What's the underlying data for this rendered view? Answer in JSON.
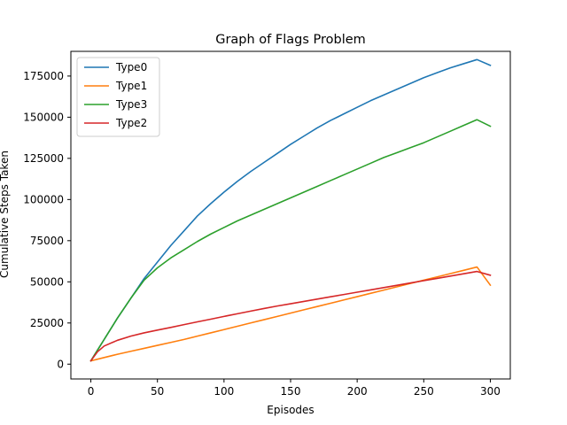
{
  "chart_data": {
    "type": "line",
    "title": "Graph of Flags Problem",
    "xlabel": "Episodes",
    "ylabel": "Cumulative Steps Taken",
    "xlim": [
      -15,
      315
    ],
    "ylim": [
      -9000,
      190000
    ],
    "xticks": [
      0,
      50,
      100,
      150,
      200,
      250,
      300
    ],
    "xtick_labels": [
      "0",
      "50",
      "100",
      "150",
      "200",
      "250",
      "300"
    ],
    "yticks": [
      0,
      25000,
      50000,
      75000,
      100000,
      125000,
      150000,
      175000
    ],
    "ytick_labels": [
      "0",
      "25000",
      "50000",
      "75000",
      "100000",
      "125000",
      "150000",
      "175000"
    ],
    "grid": false,
    "legend_position": "top-left",
    "x": [
      0,
      5,
      10,
      20,
      30,
      40,
      50,
      60,
      70,
      80,
      90,
      100,
      110,
      120,
      130,
      140,
      150,
      160,
      170,
      180,
      190,
      200,
      210,
      220,
      230,
      240,
      250,
      260,
      270,
      280,
      290,
      300
    ],
    "series": [
      {
        "name": "Type0",
        "color": "#1f77b4",
        "values": [
          2000,
          8500,
          15000,
          28000,
          40000,
          52000,
          62000,
          72000,
          81000,
          90000,
          97500,
          104500,
          111000,
          117000,
          122500,
          128000,
          133500,
          138500,
          143500,
          148000,
          152000,
          156000,
          160000,
          163500,
          167000,
          170500,
          174000,
          177000,
          180000,
          182500,
          185000,
          181500
        ]
      },
      {
        "name": "Type1",
        "color": "#ff7f0e",
        "values": [
          2000,
          3000,
          4000,
          6000,
          7800,
          9600,
          11400,
          13200,
          15000,
          17000,
          19000,
          21000,
          23000,
          25000,
          27000,
          29000,
          31000,
          33000,
          35000,
          37000,
          39000,
          41000,
          43000,
          45000,
          47000,
          49000,
          51000,
          53000,
          55000,
          57000,
          59000,
          48000
        ]
      },
      {
        "name": "Type3",
        "color": "#2ca02c",
        "values": [
          2000,
          8500,
          15000,
          28000,
          40000,
          51000,
          58500,
          64500,
          69500,
          74500,
          79000,
          83000,
          87000,
          90500,
          94000,
          97500,
          101000,
          104500,
          108000,
          111500,
          115000,
          118500,
          122000,
          125500,
          128500,
          131500,
          134500,
          138000,
          141500,
          145000,
          148500,
          144500
        ]
      },
      {
        "name": "Type2",
        "color": "#d62728",
        "values": [
          2000,
          7500,
          11000,
          14500,
          17000,
          19000,
          20700,
          22300,
          24000,
          25700,
          27300,
          29000,
          30600,
          32200,
          33800,
          35300,
          36700,
          38100,
          39500,
          40900,
          42300,
          43700,
          45100,
          46500,
          47900,
          49300,
          50700,
          52100,
          53500,
          54900,
          56300,
          54000
        ]
      }
    ]
  }
}
